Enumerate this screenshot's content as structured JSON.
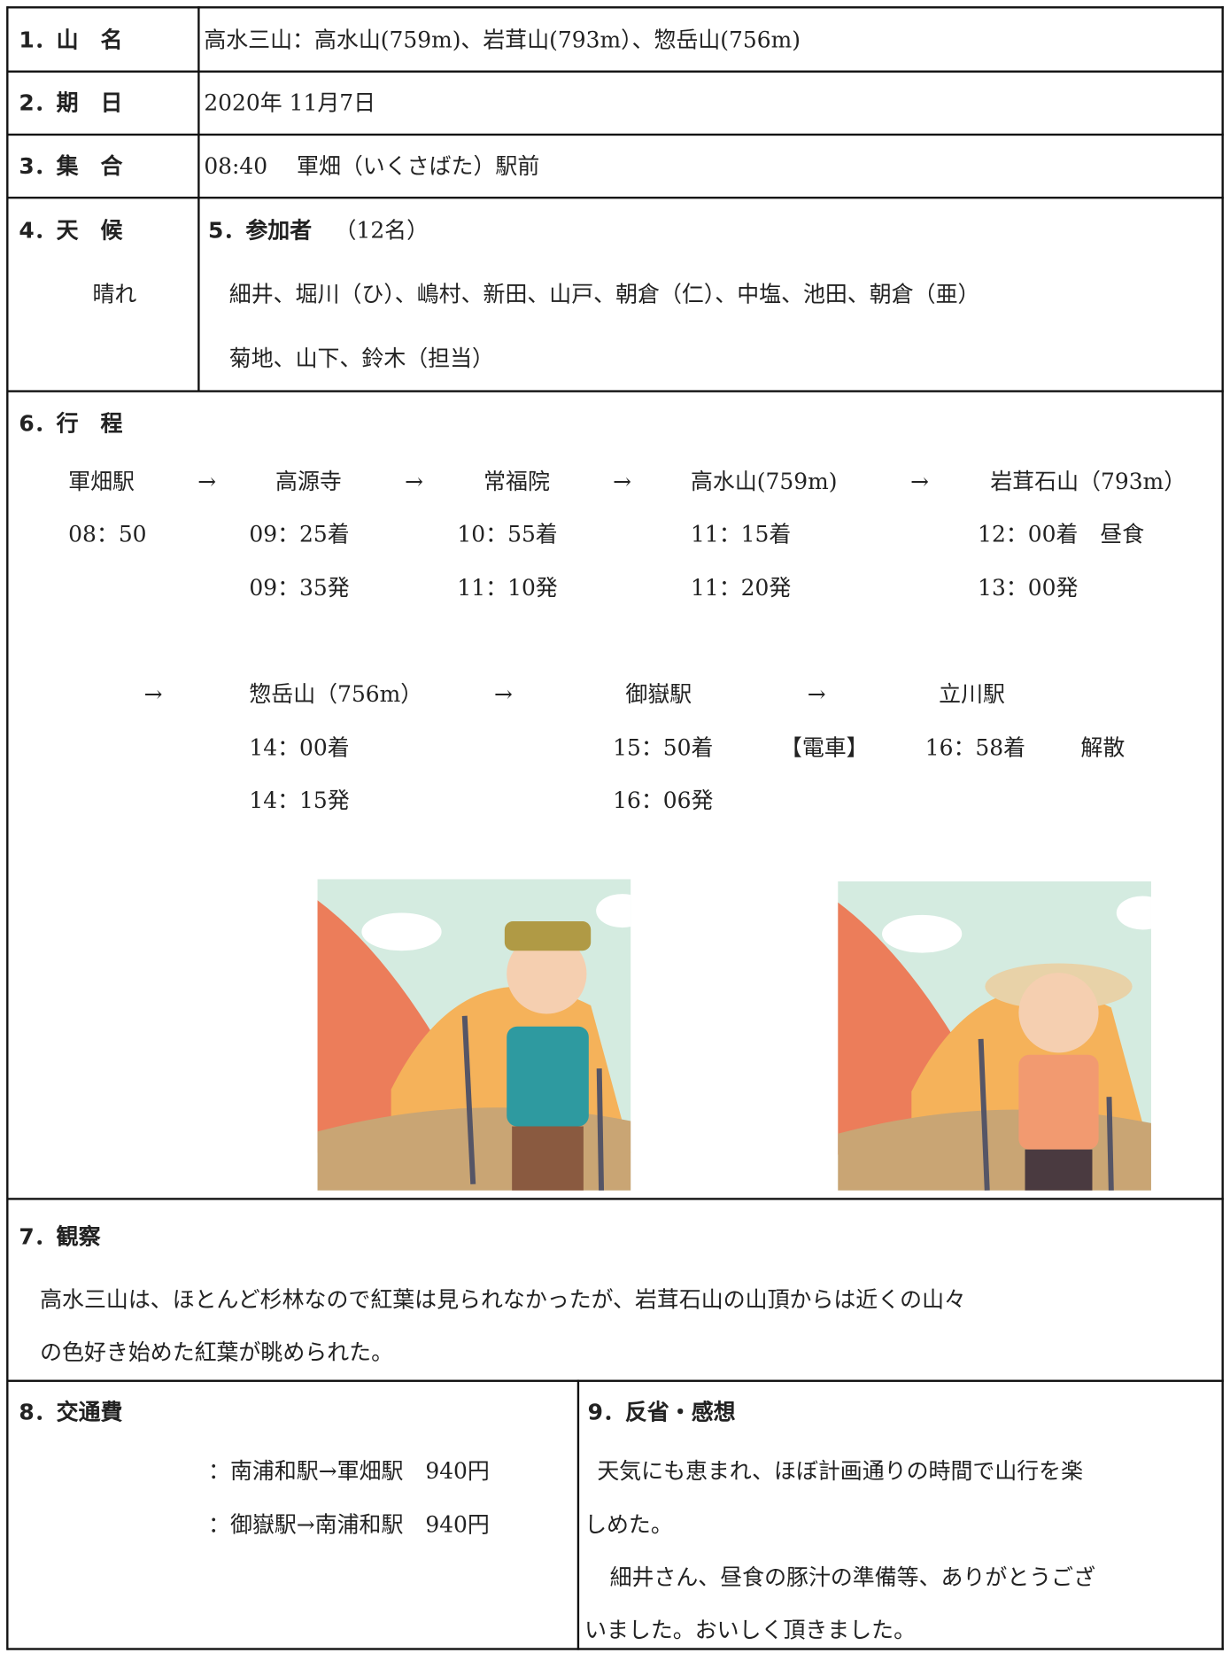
{
  "mountain": {
    "label": "1．山　名",
    "value": "高水三山：高水山(759m)、岩茸山(793m）、惣岳山(756m)"
  },
  "date": {
    "label": "2．期　日",
    "value": "2020年 11月7日"
  },
  "meeting": {
    "label": "3．集　合",
    "value": "08:40　 軍畑（いくさばた）駅前"
  },
  "weather": {
    "label": "4．天　候",
    "value": "晴れ"
  },
  "participants": {
    "label": "5．参加者",
    "count": "（12名）",
    "lines": [
      "細井、堀川（ひ）、嶋村、新田、山戸、朝倉（仁）、中塩、池田、朝倉（亜）",
      "菊地、山下、鈴木（担当）"
    ]
  },
  "itinerary": {
    "label": "6．行　程",
    "rows": [
      [
        "軍畑駅",
        "→",
        "高源寺",
        "→",
        "常福院",
        "→",
        "高水山(759m)",
        "→",
        "岩茸石山（793m）"
      ],
      [
        "08：50",
        "09：25着",
        "10：55着",
        "11：15着",
        "12：00着　昼食"
      ],
      [
        "09：35発",
        "11：10発",
        "11：20発",
        "13：00発"
      ],
      [
        "→",
        "惣岳山（756m）",
        "→",
        "御嶽駅",
        "→",
        "立川駅"
      ],
      [
        "14：00着",
        "15：50着",
        "【電車】",
        "16：58着",
        "解散"
      ],
      [
        "14：15発",
        "16：06発"
      ]
    ]
  },
  "observation": {
    "label": "7．観察",
    "lines": [
      "高水三山は、ほとんど杉林なので紅葉は見られなかったが、岩茸石山の山頂からは近くの山々",
      "の色好き始めた紅葉が眺められた。"
    ]
  },
  "transport": {
    "label": "8．交通費",
    "lines": [
      "：南浦和駅→軍畑駅　940円",
      "：御嶽駅→南浦和駅　940円"
    ]
  },
  "reflection": {
    "label": "9．反省・感想",
    "lines": [
      "天気にも恵まれ、ほぼ計画通りの時間で山行を楽",
      "しめた。",
      "細井さん、昼食の豚汁の準備等、ありがとうござ",
      "いました。おいしく頂きました。"
    ]
  }
}
